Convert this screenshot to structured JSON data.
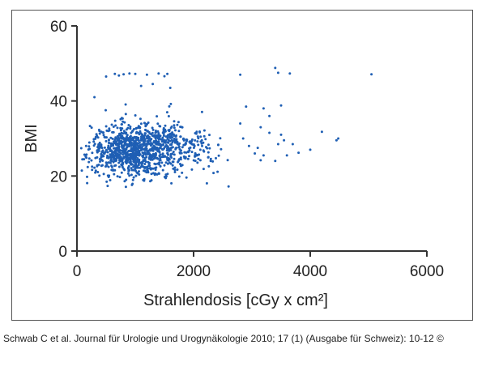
{
  "caption": "Schwab C et al. Journal für Urologie und Urogynäkologie 2010; 17 (1) (Ausgabe für Schweiz): 10-12 ©",
  "chart_data": {
    "type": "scatter",
    "title": "",
    "xlabel": "Strahlendosis [cGy x cm²]",
    "ylabel": "BMI",
    "xlim": [
      0,
      6000
    ],
    "ylim": [
      0,
      60
    ],
    "xticks": [
      0,
      2000,
      4000,
      6000
    ],
    "yticks": [
      0,
      20,
      40,
      60
    ],
    "xtick_labels": [
      "0",
      "2000",
      "4000",
      "6000"
    ],
    "ytick_labels": [
      "0",
      "20",
      "40",
      "60"
    ],
    "grid": false,
    "legend": "none",
    "point_color": "#1f5fb4",
    "n_points_approx": 1200,
    "cluster": {
      "x_center": 900,
      "y_center": 26.5,
      "x_range": [
        50,
        2600
      ],
      "y_range": [
        16.5,
        41
      ]
    },
    "outliers": [
      {
        "x": 500,
        "y": 46.5
      },
      {
        "x": 650,
        "y": 47.2
      },
      {
        "x": 720,
        "y": 46.8
      },
      {
        "x": 800,
        "y": 47.1
      },
      {
        "x": 900,
        "y": 47.3
      },
      {
        "x": 1000,
        "y": 47.2
      },
      {
        "x": 1200,
        "y": 47.0
      },
      {
        "x": 1400,
        "y": 47.3
      },
      {
        "x": 1500,
        "y": 46.6
      },
      {
        "x": 1550,
        "y": 47.2
      },
      {
        "x": 1100,
        "y": 44.0
      },
      {
        "x": 1300,
        "y": 44.5
      },
      {
        "x": 1600,
        "y": 43.5
      },
      {
        "x": 300,
        "y": 41.0
      },
      {
        "x": 2800,
        "y": 47.0
      },
      {
        "x": 3400,
        "y": 48.8
      },
      {
        "x": 3450,
        "y": 47.5
      },
      {
        "x": 3650,
        "y": 47.3
      },
      {
        "x": 5050,
        "y": 47.1
      },
      {
        "x": 2900,
        "y": 38.5
      },
      {
        "x": 3200,
        "y": 38.0
      },
      {
        "x": 3500,
        "y": 38.8
      },
      {
        "x": 2800,
        "y": 34.0
      },
      {
        "x": 3300,
        "y": 36.0
      },
      {
        "x": 3150,
        "y": 33.0
      },
      {
        "x": 3500,
        "y": 31.0
      },
      {
        "x": 3300,
        "y": 31.5
      },
      {
        "x": 2850,
        "y": 30.0
      },
      {
        "x": 2950,
        "y": 28.0
      },
      {
        "x": 3100,
        "y": 27.5
      },
      {
        "x": 3050,
        "y": 26.0
      },
      {
        "x": 3200,
        "y": 25.5
      },
      {
        "x": 3400,
        "y": 24.0
      },
      {
        "x": 3450,
        "y": 28.5
      },
      {
        "x": 3550,
        "y": 29.5
      },
      {
        "x": 3700,
        "y": 28.5
      },
      {
        "x": 3150,
        "y": 24.2
      },
      {
        "x": 3600,
        "y": 25.5
      },
      {
        "x": 4000,
        "y": 27.0
      },
      {
        "x": 4200,
        "y": 31.8
      },
      {
        "x": 4450,
        "y": 29.5
      },
      {
        "x": 4480,
        "y": 30.0
      },
      {
        "x": 2600,
        "y": 17.2
      },
      {
        "x": 3800,
        "y": 26.2
      }
    ]
  }
}
